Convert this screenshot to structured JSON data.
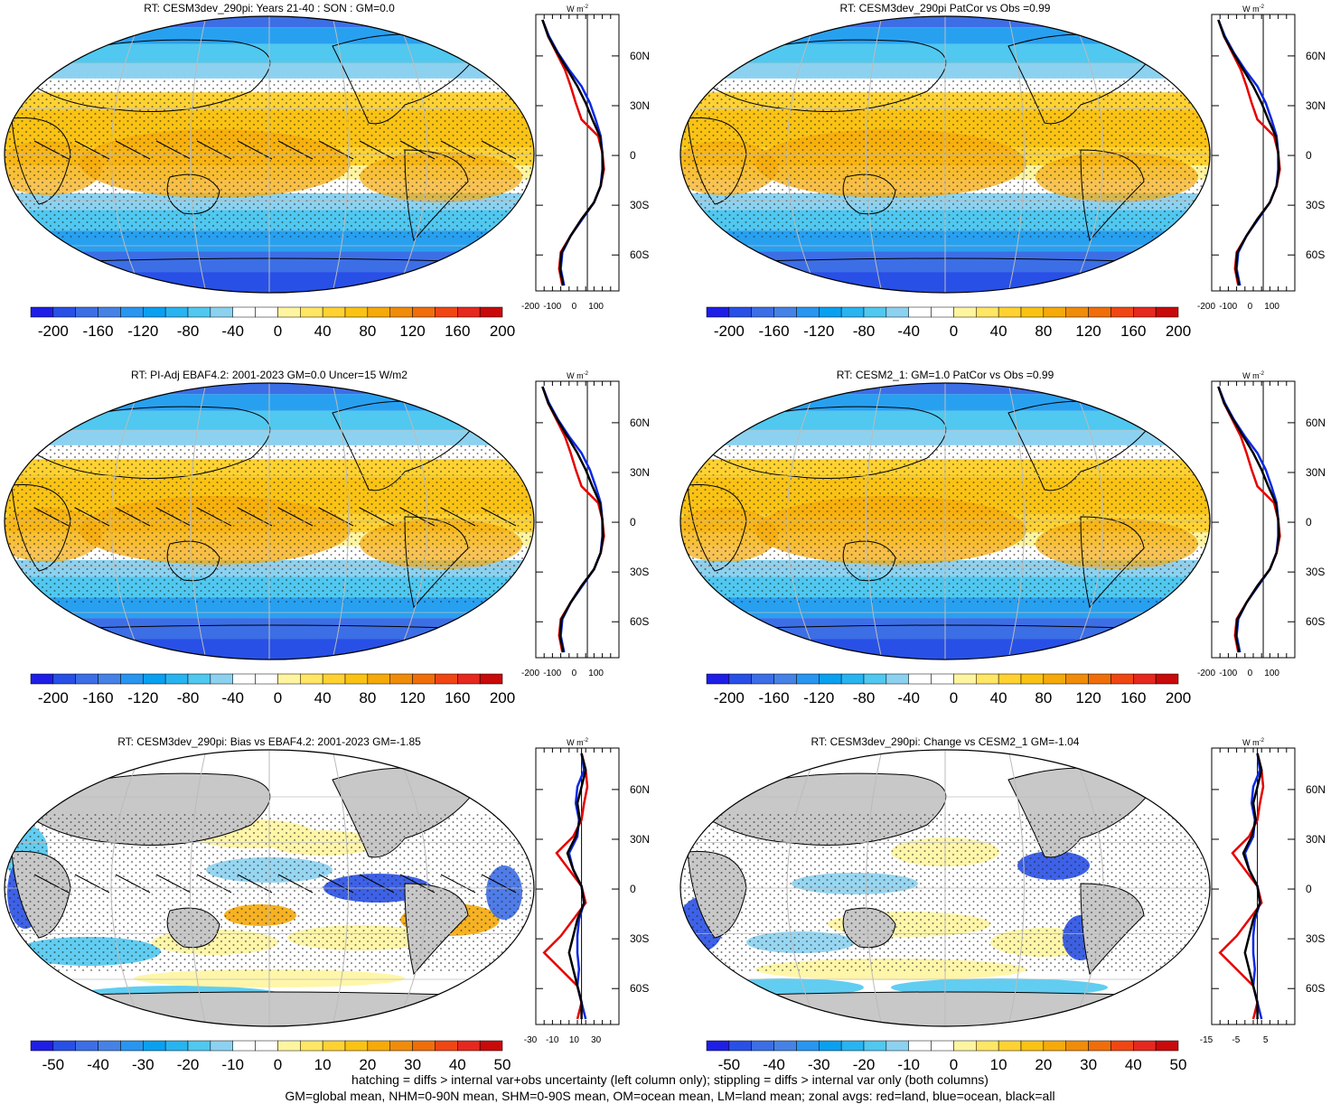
{
  "panels": [
    {
      "title": "RT: CESM3dev_290pi: Years 21-40 : SON : GM=0.0",
      "scale": "full",
      "hatch": true,
      "bias": false
    },
    {
      "title": "RT: CESM3dev_290pi PatCor vs Obs =0.99",
      "scale": "full",
      "hatch": false,
      "bias": false
    },
    {
      "title": "RT: PI-Adj EBAF4.2: 2001-2023 GM=0.0 Uncer=15 W/m2",
      "scale": "full",
      "hatch": true,
      "bias": false
    },
    {
      "title": "RT: CESM2_1: GM=1.0 PatCor vs Obs =0.99",
      "scale": "full",
      "hatch": false,
      "bias": false
    },
    {
      "title": "RT: CESM3dev_290pi: Bias vs EBAF4.2: 2001-2023  GM=-1.85",
      "scale": "diff",
      "hatch": true,
      "bias": true
    },
    {
      "title": "RT: CESM3dev_290pi: Change vs CESM2_1 GM=-1.04",
      "scale": "diff",
      "hatch": false,
      "bias": true
    }
  ],
  "colorbars": {
    "full": {
      "labels": [
        "-200",
        "-160",
        "-120",
        "-80",
        "-40",
        "0",
        "40",
        "80",
        "120",
        "160",
        "200"
      ]
    },
    "diff": {
      "labels": [
        "-50",
        "-40",
        "-30",
        "-20",
        "-10",
        "0",
        "10",
        "20",
        "30",
        "40",
        "50"
      ]
    },
    "colors": [
      "#1e1ee6",
      "#2850e6",
      "#3c6ee6",
      "#4682e6",
      "#2896f0",
      "#0aa0f0",
      "#28b4f0",
      "#50c8f0",
      "#8cd2f0",
      "#ffffff",
      "#ffffff",
      "#fff5a0",
      "#ffe664",
      "#ffd232",
      "#fac314",
      "#f5aa0a",
      "#f08c0a",
      "#f06e0a",
      "#f04614",
      "#e6281e",
      "#c80a0a"
    ]
  },
  "zonal": {
    "units": "W m",
    "units_sup": "-2",
    "lat_labels": [
      "60N",
      "30N",
      "0",
      "30S",
      "60S"
    ],
    "full_ticks": [
      "-200",
      "-100",
      "0",
      "100"
    ],
    "bias_ticks_left": [
      "-30",
      "-10",
      "10",
      "30"
    ],
    "bias_ticks_right": [
      "-15",
      "-5",
      "5"
    ]
  },
  "footer": [
    "hatching = diffs > internal var+obs uncertainty (left column only); stippling = diffs > internal var only (both columns)",
    "GM=global mean, NHM=0-90N mean, SHM=0-90S mean, OM=ocean mean, LM=land mean; zonal avgs: red=land, blue=ocean, black=all"
  ]
}
